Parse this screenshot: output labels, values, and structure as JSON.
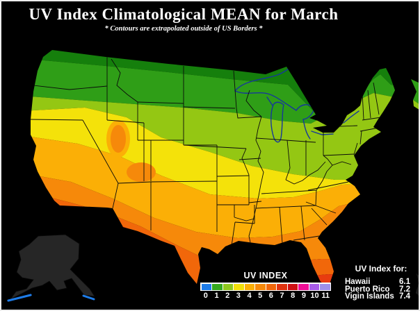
{
  "header": {
    "title": "UV Index Climatological MEAN for March",
    "subtitle": "* Contours are extrapolated outside of US Borders *"
  },
  "legend": {
    "title": "UV INDEX",
    "scale": [
      {
        "value": "0",
        "color": "#1e7ce8"
      },
      {
        "value": "1",
        "color": "#35a81e"
      },
      {
        "value": "2",
        "color": "#8fc81e"
      },
      {
        "value": "3",
        "color": "#f2e00a"
      },
      {
        "value": "4",
        "color": "#fbaf06"
      },
      {
        "value": "5",
        "color": "#f6890a"
      },
      {
        "value": "6",
        "color": "#f1670a"
      },
      {
        "value": "7",
        "color": "#e0330f"
      },
      {
        "value": "8",
        "color": "#cf1014"
      },
      {
        "value": "9",
        "color": "#ee0e96"
      },
      {
        "value": "10",
        "color": "#a85ce8"
      },
      {
        "value": "11",
        "color": "#9e90e8"
      }
    ]
  },
  "islands": {
    "title": "UV Index for:",
    "rows": [
      {
        "name": "Hawaii",
        "value": "6.1"
      },
      {
        "name": "Puerto Rico",
        "value": "7.2"
      },
      {
        "name": "Vigin Islands",
        "value": "7.4"
      }
    ]
  },
  "map": {
    "region": "Contiguous United States with Alaska inset",
    "band_colors": [
      "#157f0c",
      "#2f9e17",
      "#94c713",
      "#f4e20a",
      "#fbaf06",
      "#f6890a",
      "#f1670a",
      "#e83c0f"
    ],
    "lake_outline_color": "#16379b",
    "alaska_fill": "#262626",
    "alaska_coast_color": "#1e7ce8",
    "state_border_color": "#0a0a0a",
    "background": "#000000"
  }
}
